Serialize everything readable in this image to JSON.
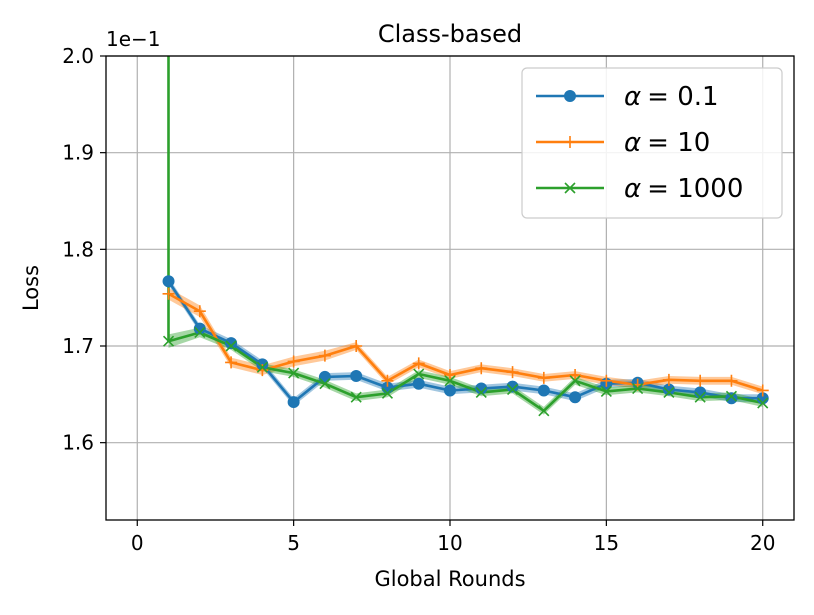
{
  "chart_data": {
    "type": "line",
    "title": "Class-based",
    "xlabel": "Global Rounds",
    "ylabel": "Loss",
    "offset_label": "1e−1",
    "xlim": [
      -1,
      21
    ],
    "ylim": [
      1.52,
      2.0
    ],
    "xticks": [
      0,
      5,
      10,
      15,
      20
    ],
    "xtick_labels": [
      "0",
      "5",
      "10",
      "15",
      "20"
    ],
    "yticks": [
      1.6,
      1.7,
      1.8,
      1.9,
      2.0
    ],
    "ytick_labels": [
      "1.6",
      "1.7",
      "1.8",
      "1.9",
      "2.0"
    ],
    "grid": true,
    "legend_position": "top-right",
    "x": [
      1,
      2,
      3,
      4,
      5,
      6,
      7,
      8,
      9,
      10,
      11,
      12,
      13,
      14,
      15,
      16,
      17,
      18,
      19,
      20
    ],
    "series": [
      {
        "name": "α = 0.1",
        "legend_symbol": "α",
        "legend_value": "= 0.1",
        "color": "#1f77b4",
        "marker": "circle",
        "values": [
          1.767,
          1.718,
          1.703,
          1.681,
          1.642,
          1.668,
          1.669,
          1.657,
          1.661,
          1.654,
          1.656,
          1.658,
          1.654,
          1.647,
          1.661,
          1.662,
          1.655,
          1.652,
          1.646,
          1.646
        ],
        "band": [
          0.004,
          0.004,
          0.004,
          0.004,
          0.004,
          0.004,
          0.004,
          0.004,
          0.004,
          0.004,
          0.004,
          0.004,
          0.004,
          0.004,
          0.004,
          0.004,
          0.004,
          0.004,
          0.004,
          0.004
        ]
      },
      {
        "name": "α = 10",
        "legend_symbol": "α",
        "legend_value": "= 10",
        "color": "#ff7f0e",
        "marker": "plus",
        "values": [
          1.754,
          1.736,
          1.683,
          1.675,
          1.684,
          1.69,
          1.7,
          1.664,
          1.682,
          1.67,
          1.677,
          1.673,
          1.667,
          1.67,
          1.664,
          1.66,
          1.665,
          1.664,
          1.664,
          1.654
        ],
        "band": [
          0.006,
          0.006,
          0.005,
          0.005,
          0.005,
          0.005,
          0.004,
          0.004,
          0.004,
          0.004,
          0.004,
          0.004,
          0.004,
          0.004,
          0.004,
          0.004,
          0.004,
          0.004,
          0.004,
          0.004
        ]
      },
      {
        "name": "α = 1000",
        "legend_symbol": "α",
        "legend_value": "= 1000",
        "color": "#2ca02c",
        "marker": "x",
        "start_point": [
          1,
          2.0
        ],
        "values": [
          1.705,
          1.714,
          1.7,
          1.678,
          1.672,
          1.661,
          1.647,
          1.651,
          1.671,
          1.664,
          1.652,
          1.655,
          1.633,
          1.664,
          1.653,
          1.656,
          1.652,
          1.647,
          1.648,
          1.641
        ],
        "band": [
          0.007,
          0.005,
          0.004,
          0.004,
          0.004,
          0.004,
          0.004,
          0.004,
          0.004,
          0.004,
          0.004,
          0.004,
          0.004,
          0.004,
          0.004,
          0.004,
          0.004,
          0.004,
          0.004,
          0.004
        ]
      }
    ]
  }
}
